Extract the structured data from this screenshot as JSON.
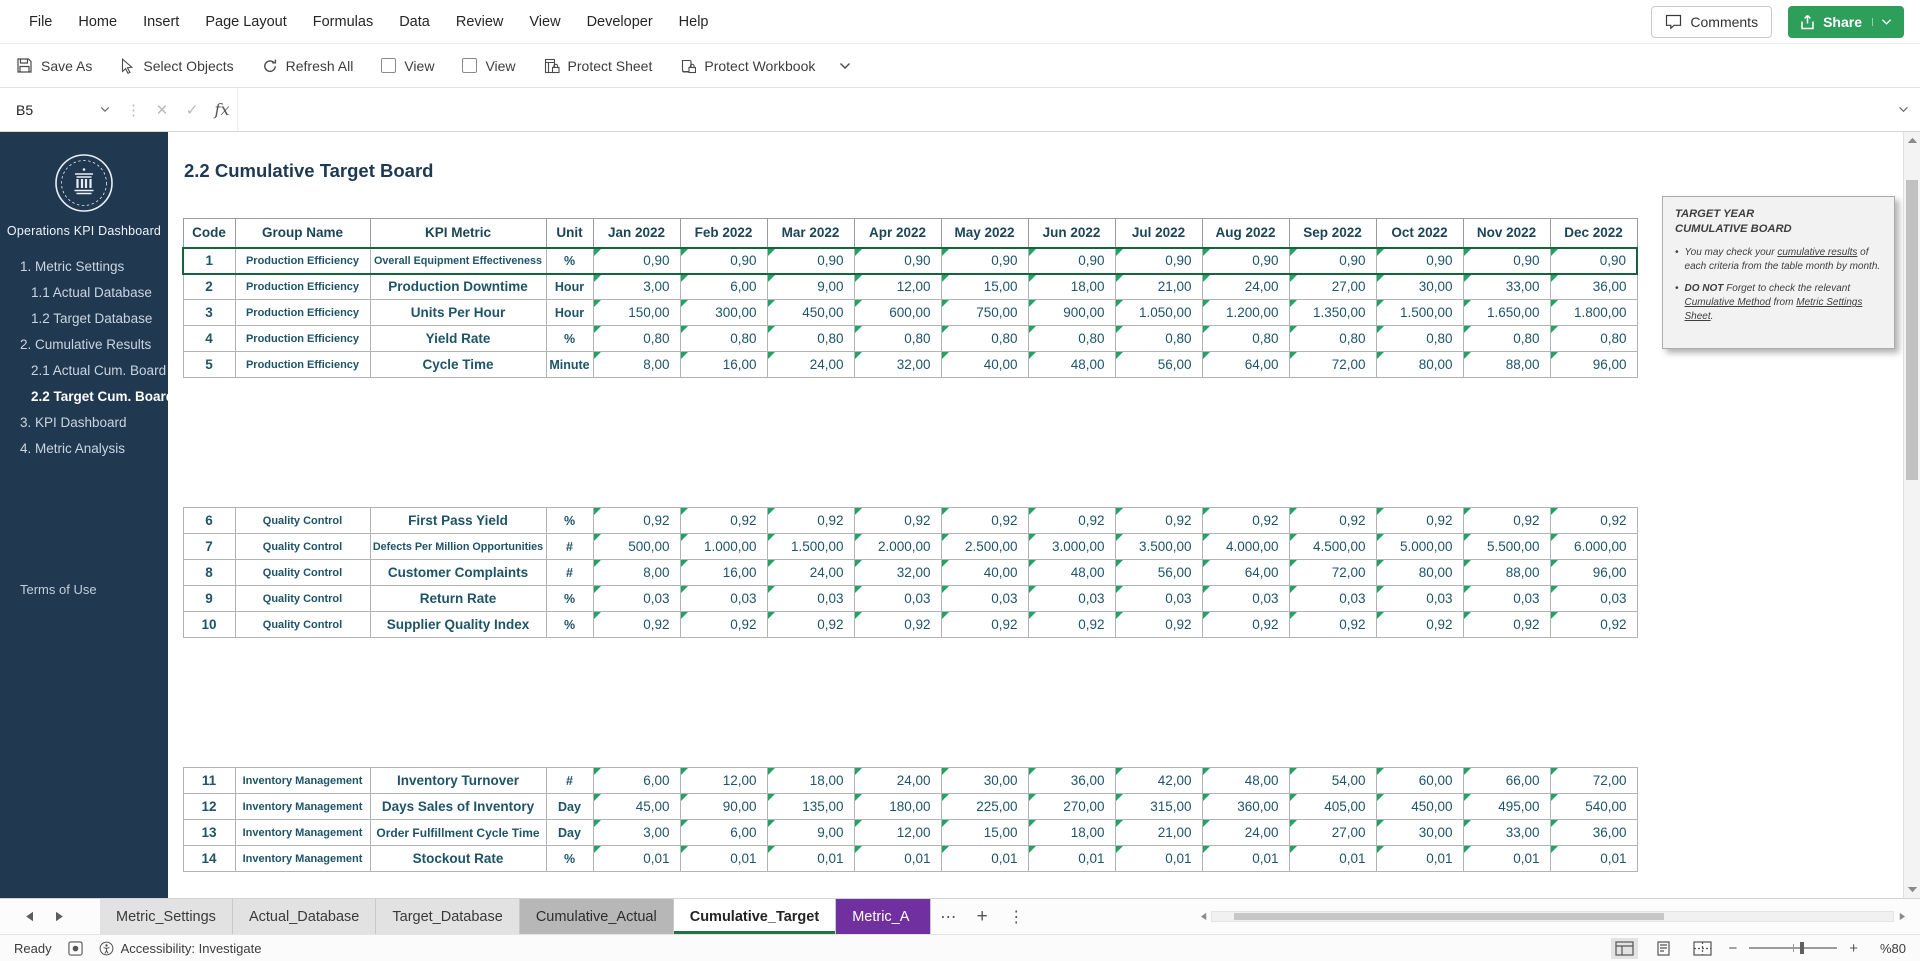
{
  "colors": {
    "share_green": "#2e9e5b",
    "tab_active_underline": "#217346",
    "tab_purple": "#7030a0",
    "sidebar_bg": "#213950",
    "table_text": "#1d5468",
    "cell_flag_green": "#21a366",
    "selection_border": "#17643b"
  },
  "icons": {
    "cancel": "✕",
    "enter": "✓",
    "more_tabs": "⋯",
    "add_sheet": "+",
    "dots_vertical": "⋮",
    "zoom_out": "−",
    "zoom_in": "+",
    "bullet": "•"
  },
  "menu_bar": {
    "items": [
      "File",
      "Home",
      "Insert",
      "Page Layout",
      "Formulas",
      "Data",
      "Review",
      "View",
      "Developer",
      "Help"
    ],
    "comments_label": "Comments",
    "share_label": "Share"
  },
  "quick_toolbar": {
    "items": [
      {
        "label": "Save As",
        "icon": "save-icon",
        "type": "button"
      },
      {
        "label": "Select Objects",
        "icon": "cursor-icon",
        "type": "button"
      },
      {
        "label": "Refresh All",
        "icon": "refresh-icon",
        "type": "button"
      },
      {
        "label": "View",
        "icon": "checkbox",
        "type": "checkbox",
        "checked": false
      },
      {
        "label": "View",
        "icon": "checkbox",
        "type": "checkbox",
        "checked": false
      },
      {
        "label": "Protect Sheet",
        "icon": "protect-sheet-icon",
        "type": "button"
      },
      {
        "label": "Protect Workbook",
        "icon": "protect-workbook-icon",
        "type": "button"
      }
    ]
  },
  "formula_bar": {
    "name_box_value": "B5",
    "fx_label": "fx",
    "formula_value": ""
  },
  "sidebar": {
    "title": "Operations KPI Dashboard",
    "items": [
      {
        "label": "1. Metric Settings",
        "level": 1,
        "active": false
      },
      {
        "label": "1.1 Actual Database",
        "level": 2,
        "active": false
      },
      {
        "label": "1.2 Target Database",
        "level": 2,
        "active": false
      },
      {
        "label": "2. Cumulative Results",
        "level": 1,
        "active": false
      },
      {
        "label": "2.1 Actual Cum. Board",
        "level": 2,
        "active": false
      },
      {
        "label": "2.2 Target Cum. Board",
        "level": 2,
        "active": true
      },
      {
        "label": "3. KPI Dashboard",
        "level": 1,
        "active": false
      },
      {
        "label": "4. Metric Analysis",
        "level": 1,
        "active": false
      }
    ],
    "footer_link": "Terms of Use"
  },
  "sheet": {
    "title": "2.2 Cumulative Target Board",
    "table": {
      "headers": [
        "Code",
        "Group Name",
        "KPI Metric",
        "Unit",
        "Jan 2022",
        "Feb 2022",
        "Mar 2022",
        "Apr 2022",
        "May 2022",
        "Jun 2022",
        "Jul 2022",
        "Aug 2022",
        "Sep 2022",
        "Oct 2022",
        "Nov 2022",
        "Dec 2022"
      ],
      "rows": [
        {
          "code": "1",
          "group": "Production Efficiency",
          "metric": "Overall Equipment Effectiveness",
          "metric_size": "sm",
          "unit": "%",
          "selected": true,
          "values": [
            "0,90",
            "0,90",
            "0,90",
            "0,90",
            "0,90",
            "0,90",
            "0,90",
            "0,90",
            "0,90",
            "0,90",
            "0,90",
            "0,90"
          ]
        },
        {
          "code": "2",
          "group": "Production Efficiency",
          "metric": "Production Downtime",
          "unit": "Hour",
          "values": [
            "3,00",
            "6,00",
            "9,00",
            "12,00",
            "15,00",
            "18,00",
            "21,00",
            "24,00",
            "27,00",
            "30,00",
            "33,00",
            "36,00"
          ]
        },
        {
          "code": "3",
          "group": "Production Efficiency",
          "metric": "Units Per Hour",
          "unit": "Hour",
          "values": [
            "150,00",
            "300,00",
            "450,00",
            "600,00",
            "750,00",
            "900,00",
            "1.050,00",
            "1.200,00",
            "1.350,00",
            "1.500,00",
            "1.650,00",
            "1.800,00"
          ]
        },
        {
          "code": "4",
          "group": "Production Efficiency",
          "metric": "Yield Rate",
          "unit": "%",
          "values": [
            "0,80",
            "0,80",
            "0,80",
            "0,80",
            "0,80",
            "0,80",
            "0,80",
            "0,80",
            "0,80",
            "0,80",
            "0,80",
            "0,80"
          ]
        },
        {
          "code": "5",
          "group": "Production Efficiency",
          "metric": "Cycle Time",
          "unit": "Minute",
          "values": [
            "8,00",
            "16,00",
            "24,00",
            "32,00",
            "40,00",
            "48,00",
            "56,00",
            "64,00",
            "72,00",
            "80,00",
            "88,00",
            "96,00"
          ]
        },
        {
          "blank": true
        },
        {
          "blank": true
        },
        {
          "blank": true
        },
        {
          "blank": true
        },
        {
          "blank": true
        },
        {
          "code": "6",
          "group": "Quality Control",
          "metric": "First Pass Yield",
          "unit": "%",
          "values": [
            "0,92",
            "0,92",
            "0,92",
            "0,92",
            "0,92",
            "0,92",
            "0,92",
            "0,92",
            "0,92",
            "0,92",
            "0,92",
            "0,92"
          ]
        },
        {
          "code": "7",
          "group": "Quality Control",
          "metric": "Defects Per Million Opportunities",
          "metric_size": "sm",
          "unit": "#",
          "values": [
            "500,00",
            "1.000,00",
            "1.500,00",
            "2.000,00",
            "2.500,00",
            "3.000,00",
            "3.500,00",
            "4.000,00",
            "4.500,00",
            "5.000,00",
            "5.500,00",
            "6.000,00"
          ]
        },
        {
          "code": "8",
          "group": "Quality Control",
          "metric": "Customer Complaints",
          "unit": "#",
          "values": [
            "8,00",
            "16,00",
            "24,00",
            "32,00",
            "40,00",
            "48,00",
            "56,00",
            "64,00",
            "72,00",
            "80,00",
            "88,00",
            "96,00"
          ]
        },
        {
          "code": "9",
          "group": "Quality Control",
          "metric": "Return Rate",
          "unit": "%",
          "values": [
            "0,03",
            "0,03",
            "0,03",
            "0,03",
            "0,03",
            "0,03",
            "0,03",
            "0,03",
            "0,03",
            "0,03",
            "0,03",
            "0,03"
          ]
        },
        {
          "code": "10",
          "group": "Quality Control",
          "metric": "Supplier Quality Index",
          "unit": "%",
          "values": [
            "0,92",
            "0,92",
            "0,92",
            "0,92",
            "0,92",
            "0,92",
            "0,92",
            "0,92",
            "0,92",
            "0,92",
            "0,92",
            "0,92"
          ]
        },
        {
          "blank": true
        },
        {
          "blank": true
        },
        {
          "blank": true
        },
        {
          "blank": true
        },
        {
          "blank": true
        },
        {
          "code": "11",
          "group": "Inventory Management",
          "metric": "Inventory Turnover",
          "unit": "#",
          "values": [
            "6,00",
            "12,00",
            "18,00",
            "24,00",
            "30,00",
            "36,00",
            "42,00",
            "48,00",
            "54,00",
            "60,00",
            "66,00",
            "72,00"
          ]
        },
        {
          "code": "12",
          "group": "Inventory Management",
          "metric": "Days Sales of Inventory",
          "unit": "Day",
          "values": [
            "45,00",
            "90,00",
            "135,00",
            "180,00",
            "225,00",
            "270,00",
            "315,00",
            "360,00",
            "405,00",
            "450,00",
            "495,00",
            "540,00"
          ]
        },
        {
          "code": "13",
          "group": "Inventory Management",
          "metric": "Order Fulfillment Cycle Time",
          "metric_size": "md",
          "unit": "Day",
          "values": [
            "3,00",
            "6,00",
            "9,00",
            "12,00",
            "15,00",
            "18,00",
            "21,00",
            "24,00",
            "27,00",
            "30,00",
            "33,00",
            "36,00"
          ]
        },
        {
          "code": "14",
          "group": "Inventory Management",
          "metric": "Stockout Rate",
          "unit": "%",
          "values": [
            "0,01",
            "0,01",
            "0,01",
            "0,01",
            "0,01",
            "0,01",
            "0,01",
            "0,01",
            "0,01",
            "0,01",
            "0,01",
            "0,01"
          ]
        }
      ]
    }
  },
  "note_panel": {
    "title_lines": [
      "TARGET YEAR",
      "CUMULATIVE BOARD"
    ],
    "bullets": [
      {
        "segments": [
          {
            "text": "You may check your "
          },
          {
            "text": "cumulative results",
            "underline": true
          },
          {
            "text": " of each criteria from the table month by month."
          }
        ]
      },
      {
        "segments": [
          {
            "text": "DO NOT",
            "bold": true
          },
          {
            "text": " Forget to check the relevant "
          },
          {
            "text": "Cumulative Method",
            "underline": true
          },
          {
            "text": " from "
          },
          {
            "text": "Metric Settings Sheet",
            "underline": true
          },
          {
            "text": "."
          }
        ]
      }
    ]
  },
  "sheet_tabs": {
    "tabs": [
      {
        "label": "Metric_Settings",
        "style": "normal"
      },
      {
        "label": "Actual_Database",
        "style": "normal"
      },
      {
        "label": "Target_Database",
        "style": "normal"
      },
      {
        "label": "Cumulative_Actual",
        "style": "dark"
      },
      {
        "label": "Cumulative_Target",
        "style": "active"
      },
      {
        "label": "Metric_A",
        "style": "purple"
      }
    ]
  },
  "status_bar": {
    "mode": "Ready",
    "accessibility": "Accessibility: Investigate",
    "zoom_label": "%80"
  }
}
